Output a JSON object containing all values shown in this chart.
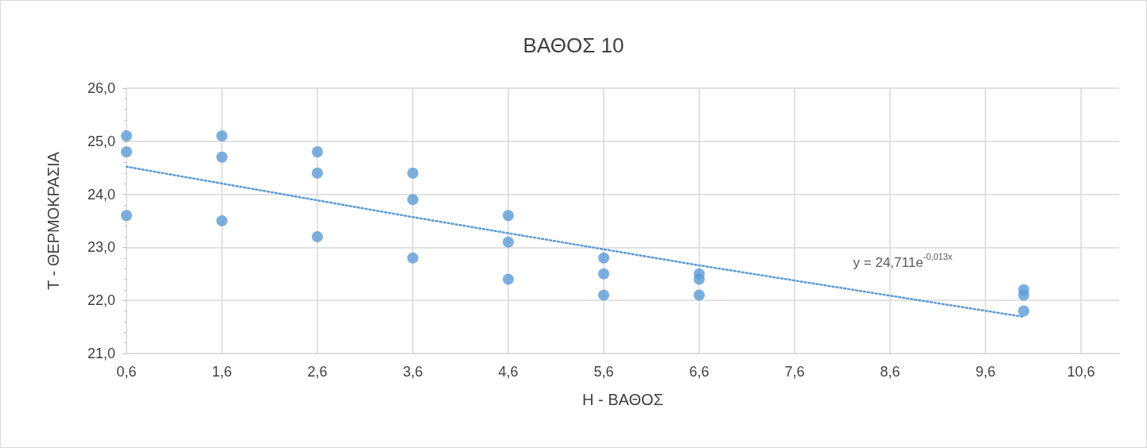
{
  "chart_data": {
    "type": "scatter",
    "title": "ΒΑΘΟΣ 10",
    "xlabel": "H - ΒΑΘΟΣ",
    "ylabel": "T - ΘΕΡΜΟΚΡΑΣΙΑ",
    "series": [
      {
        "type": "scatter",
        "color": "#5b9bd5",
        "marker": "circle",
        "x": [
          0.6,
          0.6,
          0.6,
          1.6,
          1.6,
          1.6,
          2.6,
          2.6,
          2.6,
          3.6,
          3.6,
          3.6,
          4.6,
          4.6,
          4.6,
          5.6,
          5.6,
          5.6,
          6.6,
          6.6,
          6.6,
          10,
          10,
          10
        ],
        "values": [
          25.1,
          24.8,
          23.6,
          25.1,
          24.7,
          23.5,
          24.8,
          24.4,
          23.2,
          24.4,
          23.9,
          22.8,
          23.6,
          23.1,
          22.4,
          22.8,
          22.5,
          22.1,
          22.5,
          22.4,
          22.1,
          22.2,
          22.1,
          21.8
        ]
      },
      {
        "type": "line",
        "color": "#5b9bd5",
        "marker": "none",
        "line_style": "dotted",
        "x": [
          0.6,
          3.6,
          6.6,
          10
        ],
        "values": [
          24.52,
          23.57,
          22.66,
          21.69
        ]
      }
    ],
    "annotations": [
      "y = 24,711e$^{-0,013x}$"
    ],
    "xlim": [
      0.6,
      11.0
    ],
    "ylim": [
      21,
      26
    ],
    "xticks": [
      {
        "value": 0.6,
        "label": "0,6"
      },
      {
        "value": 1.6,
        "label": "1,6"
      },
      {
        "value": 2.6,
        "label": "2,6"
      },
      {
        "value": 3.6,
        "label": "3,6"
      },
      {
        "value": 4.6,
        "label": "4,6"
      },
      {
        "value": 5.6,
        "label": "5,6"
      },
      {
        "value": 6.6,
        "label": "6,6"
      },
      {
        "value": 7.6,
        "label": "7,6"
      },
      {
        "value": 8.6,
        "label": "8,6"
      },
      {
        "value": 9.6,
        "label": "9,6"
      },
      {
        "value": 10.6,
        "label": "10,6"
      }
    ],
    "yticks": [
      {
        "value": 21,
        "label": "21,0"
      },
      {
        "value": 22,
        "label": "22,0"
      },
      {
        "value": 23,
        "label": "23,0"
      },
      {
        "value": 24,
        "label": "24,0"
      },
      {
        "value": 25,
        "label": "25,0"
      },
      {
        "value": 26,
        "label": "26,0"
      }
    ],
    "grid": true
  }
}
